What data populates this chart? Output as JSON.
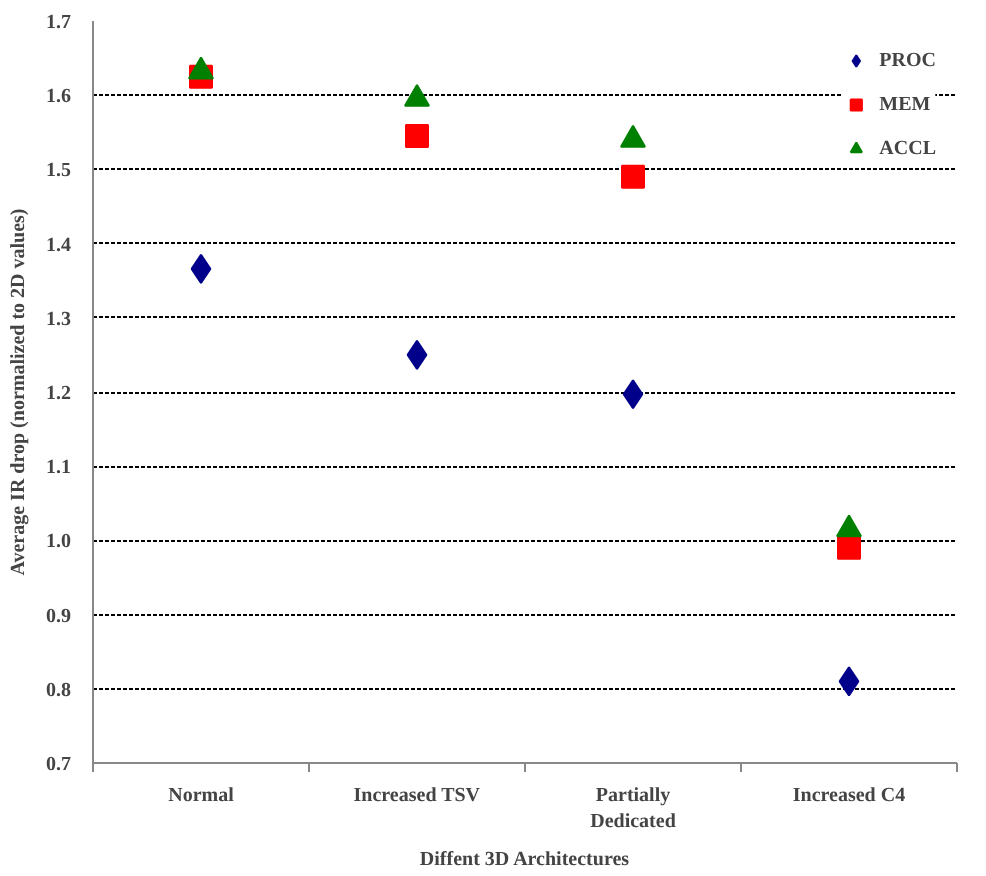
{
  "chart_data": {
    "type": "scatter",
    "xlabel": "Diffent 3D Architectures",
    "ylabel": "Average IR drop (normalized to 2D values)",
    "categories": [
      "Normal",
      "Increased TSV",
      "Partially Dedicated",
      "Increased C4"
    ],
    "series": [
      {
        "name": "PROC",
        "color": "#00008b",
        "marker": "diamond",
        "values": [
          1.366,
          1.25,
          1.197,
          0.81
        ]
      },
      {
        "name": "MEM",
        "color": "#ff0000",
        "marker": "square",
        "values": [
          1.625,
          1.545,
          1.49,
          0.99
        ]
      },
      {
        "name": "ACCL",
        "color": "#008000",
        "marker": "triangle",
        "values": [
          1.632,
          1.595,
          1.54,
          1.015
        ]
      }
    ],
    "ylim": [
      0.7,
      1.7
    ],
    "yticks": [
      {
        "value": 0.7,
        "label": "0.7"
      },
      {
        "value": 0.8,
        "label": "0.8"
      },
      {
        "value": 0.9,
        "label": "0.9"
      },
      {
        "value": 1.0,
        "label": "1.0"
      },
      {
        "value": 1.1,
        "label": "1.1"
      },
      {
        "value": 1.2,
        "label": "1.2"
      },
      {
        "value": 1.3,
        "label": "1.3"
      },
      {
        "value": 1.4,
        "label": "1.4"
      },
      {
        "value": 1.5,
        "label": "1.5"
      },
      {
        "value": 1.6,
        "label": "1.6"
      },
      {
        "value": 1.7,
        "label": "1.7"
      }
    ],
    "grid": "y",
    "legend": "top right"
  }
}
